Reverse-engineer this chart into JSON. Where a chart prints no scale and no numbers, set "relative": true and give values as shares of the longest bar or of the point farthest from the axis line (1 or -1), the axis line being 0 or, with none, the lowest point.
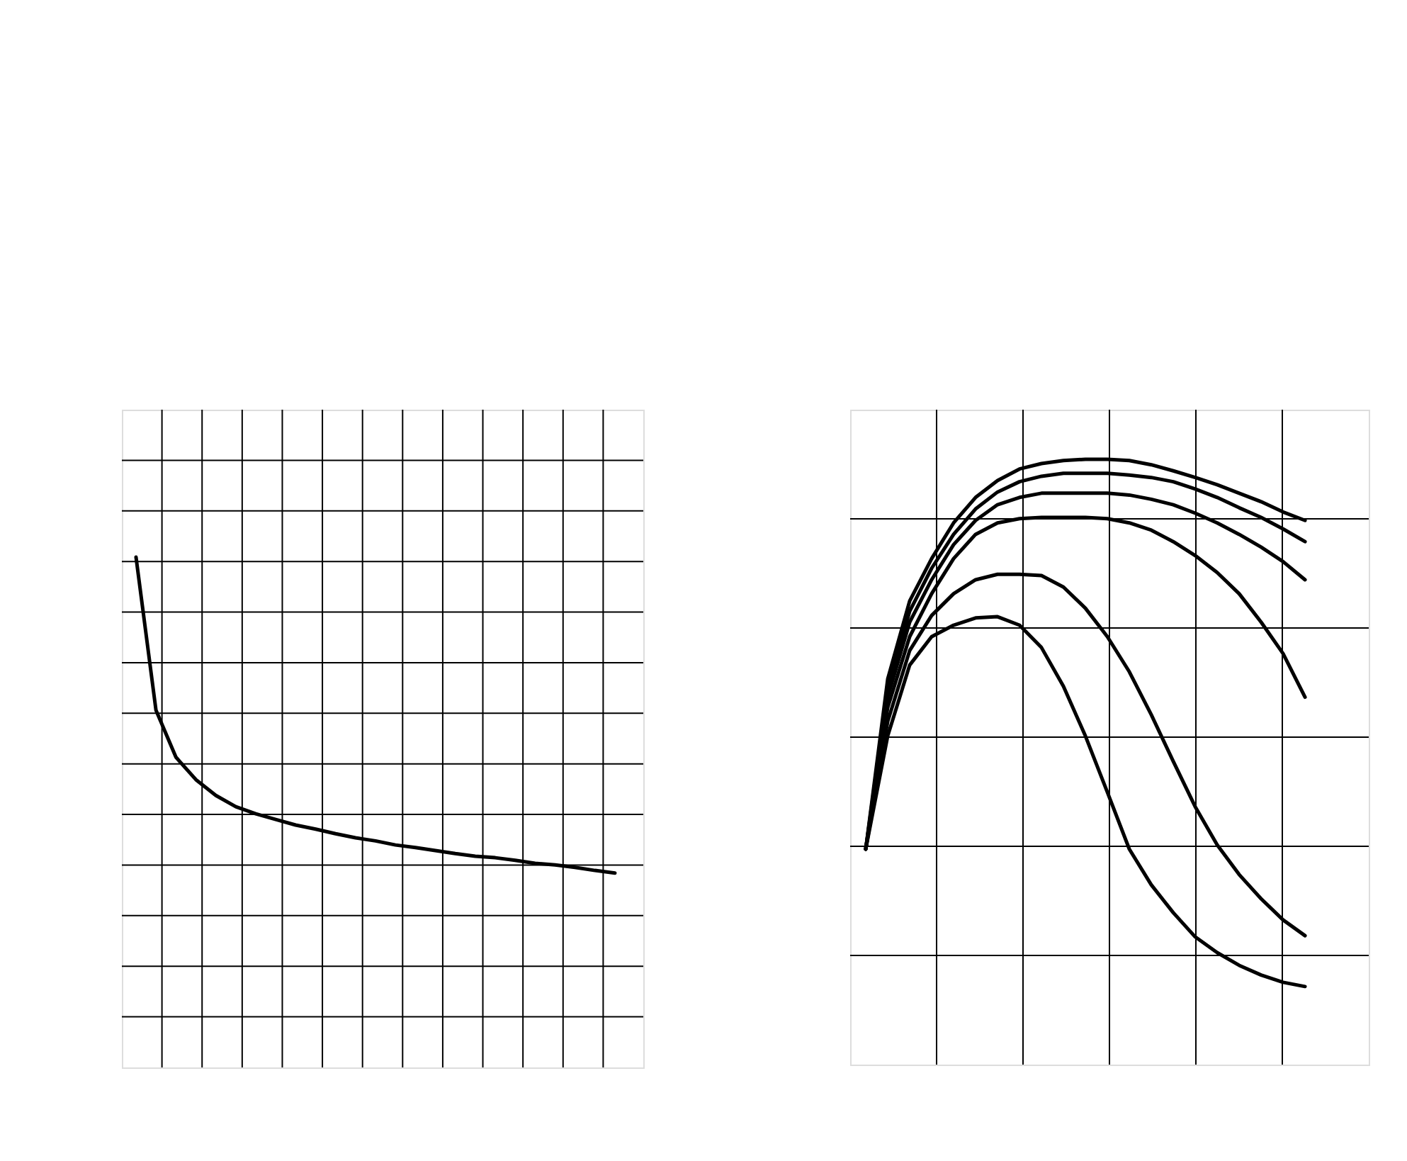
{
  "chart_data": [
    {
      "type": "line",
      "relative": true,
      "grid": true,
      "categories": [
        null,
        null,
        null,
        null,
        null,
        null,
        null,
        null,
        null,
        null,
        null,
        null,
        null,
        null,
        null,
        null,
        null,
        null,
        null,
        null,
        null,
        null,
        null,
        null,
        null
      ],
      "series": [
        {
          "color": "#000000",
          "values": [
            1,
            0.7,
            0.608,
            0.564,
            0.533,
            0.511,
            0.497,
            0.486,
            0.475,
            0.467,
            0.458,
            0.45,
            0.444,
            0.436,
            0.431,
            0.425,
            0.419,
            0.414,
            0.411,
            0.406,
            0.4,
            0.397,
            0.392,
            0.386,
            0.381
          ]
        }
      ]
    },
    {
      "type": "line",
      "relative": true,
      "grid": true,
      "categories": [
        null,
        null,
        null,
        null,
        null,
        null,
        null,
        null,
        null,
        null,
        null,
        null,
        null,
        null,
        null,
        null,
        null,
        null,
        null,
        null,
        null
      ],
      "series": [
        {
          "color": "#000000",
          "values": [
            0.356,
            0.637,
            0.766,
            0.836,
            0.895,
            0.937,
            0.965,
            0.984,
            0.993,
            0.998,
            1,
            1,
            0.998,
            0.991,
            0.981,
            0.97,
            0.958,
            0.944,
            0.93,
            0.913,
            0.899
          ]
        },
        {
          "color": "#000000",
          "values": [
            0.356,
            0.621,
            0.749,
            0.82,
            0.876,
            0.918,
            0.946,
            0.963,
            0.972,
            0.977,
            0.977,
            0.977,
            0.974,
            0.97,
            0.963,
            0.951,
            0.937,
            0.92,
            0.904,
            0.885,
            0.864
          ]
        },
        {
          "color": "#000000",
          "values": [
            0.356,
            0.607,
            0.731,
            0.801,
            0.859,
            0.899,
            0.925,
            0.937,
            0.944,
            0.944,
            0.944,
            0.944,
            0.941,
            0.934,
            0.925,
            0.911,
            0.895,
            0.876,
            0.855,
            0.831,
            0.801
          ]
        },
        {
          "color": "#000000",
          "values": [
            0.356,
            0.59,
            0.707,
            0.778,
            0.836,
            0.876,
            0.895,
            0.902,
            0.904,
            0.904,
            0.904,
            0.902,
            0.895,
            0.883,
            0.864,
            0.841,
            0.813,
            0.778,
            0.731,
            0.679,
            0.607
          ]
        },
        {
          "color": "#000000",
          "values": [
            0.356,
            0.567,
            0.684,
            0.742,
            0.778,
            0.801,
            0.81,
            0.81,
            0.808,
            0.789,
            0.754,
            0.707,
            0.649,
            0.578,
            0.501,
            0.426,
            0.363,
            0.314,
            0.274,
            0.239,
            0.213
          ]
        },
        {
          "color": "#000000",
          "values": [
            0.356,
            0.543,
            0.66,
            0.707,
            0.726,
            0.738,
            0.74,
            0.726,
            0.689,
            0.625,
            0.543,
            0.45,
            0.356,
            0.297,
            0.251,
            0.211,
            0.185,
            0.164,
            0.148,
            0.136,
            0.129
          ]
        }
      ]
    }
  ]
}
